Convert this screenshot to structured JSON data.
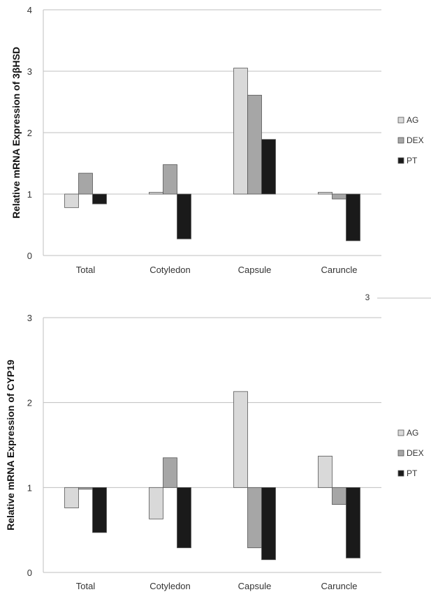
{
  "chart_data": [
    {
      "type": "bar",
      "ylabel": "Relative mRNA Expression of 3βHSD",
      "ylim": [
        0,
        4
      ],
      "yticks": [
        "0",
        "1",
        "2",
        "3",
        "4"
      ],
      "baseline": 1,
      "categories": [
        "Total",
        "Cotyledon",
        "Capsule",
        "Caruncle"
      ],
      "series": [
        {
          "name": "AG",
          "color": "#d9d9d9",
          "values": [
            0.78,
            1.03,
            3.05,
            1.03
          ]
        },
        {
          "name": "DEX",
          "color": "#a6a6a6",
          "values": [
            1.34,
            1.48,
            2.61,
            0.92
          ]
        },
        {
          "name": "PT",
          "color": "#1a1a1a",
          "values": [
            0.84,
            0.27,
            1.89,
            0.24
          ]
        }
      ],
      "grid": true,
      "legend_position": "right"
    },
    {
      "type": "bar",
      "ylabel": "Relative mRNA Expression of CYP19",
      "ylim": [
        0,
        3
      ],
      "yticks": [
        "0",
        "1",
        "2",
        "3"
      ],
      "baseline": 1,
      "categories": [
        "Total",
        "Cotyledon",
        "Capsule",
        "Caruncle"
      ],
      "series": [
        {
          "name": "AG",
          "color": "#d9d9d9",
          "values": [
            0.76,
            0.63,
            2.13,
            1.37
          ]
        },
        {
          "name": "DEX",
          "color": "#a6a6a6",
          "values": [
            0.98,
            1.35,
            0.29,
            0.8
          ]
        },
        {
          "name": "PT",
          "color": "#1a1a1a",
          "values": [
            0.47,
            0.29,
            0.15,
            0.17
          ]
        }
      ],
      "grid": true,
      "legend_position": "right"
    }
  ],
  "stray_mark": "3"
}
